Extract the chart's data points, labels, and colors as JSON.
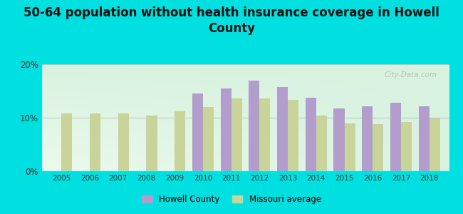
{
  "title": "50-64 population without health insurance coverage in Howell\nCounty",
  "years": [
    2005,
    2006,
    2007,
    2008,
    2009,
    2010,
    2011,
    2012,
    2013,
    2014,
    2015,
    2016,
    2017,
    2018
  ],
  "howell_county": [
    null,
    null,
    null,
    null,
    null,
    14.5,
    15.5,
    17.0,
    15.8,
    13.8,
    11.8,
    12.2,
    12.8,
    12.2
  ],
  "missouri_avg": [
    10.8,
    10.8,
    10.8,
    10.4,
    11.2,
    12.0,
    13.6,
    13.6,
    13.3,
    10.4,
    9.0,
    8.8,
    9.2,
    9.9
  ],
  "howell_color": "#b39dcc",
  "missouri_color": "#c8d49a",
  "background_top": "#f0fdf8",
  "background_bottom": "#d8f0dc",
  "outer_background": "#00e0e0",
  "ylim": [
    0,
    20
  ],
  "yticks": [
    0,
    10,
    20
  ],
  "ytick_labels": [
    "0%",
    "10%",
    "20%"
  ],
  "legend_howell": "Howell County",
  "legend_missouri": "Missouri average",
  "bar_width": 0.38,
  "title_fontsize": 12,
  "title_color": "#111111",
  "watermark": "City-Data.com"
}
